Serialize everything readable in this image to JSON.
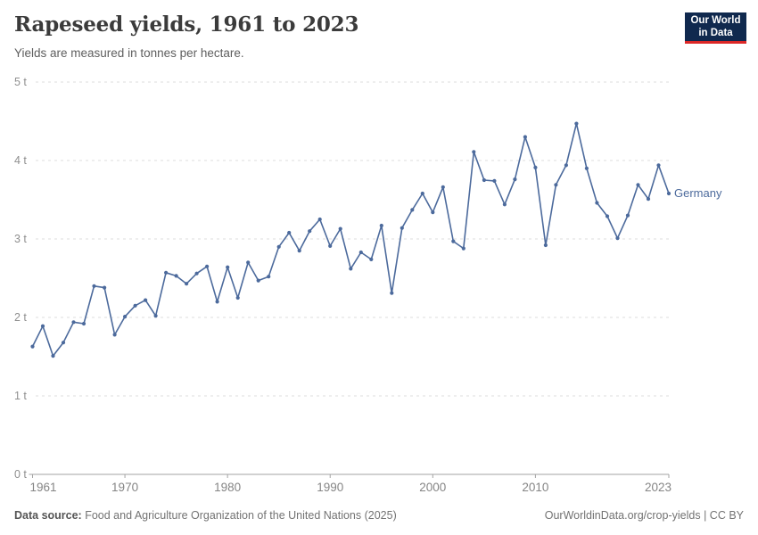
{
  "header": {
    "title": "Rapeseed yields, 1961 to 2023",
    "subtitle": "Yields are measured in tonnes per hectare.",
    "logo": {
      "line1": "Our World",
      "line2": "in Data"
    }
  },
  "chart_data": {
    "type": "line",
    "title": "Rapeseed yields, 1961 to 2023",
    "unit": "tonnes per hectare",
    "xlim": [
      1961,
      2023
    ],
    "ylim": [
      0,
      5
    ],
    "grid": "horizontal dashed",
    "legend_position": "end-of-line label, right side",
    "x_ticks": [
      {
        "v": 1961,
        "label": "1961"
      },
      {
        "v": 1970,
        "label": "1970"
      },
      {
        "v": 1980,
        "label": "1980"
      },
      {
        "v": 1990,
        "label": "1990"
      },
      {
        "v": 2000,
        "label": "2000"
      },
      {
        "v": 2010,
        "label": "2010"
      },
      {
        "v": 2023,
        "label": "2023"
      }
    ],
    "y_ticks": [
      {
        "v": 0,
        "label": "0 t"
      },
      {
        "v": 1,
        "label": "1 t"
      },
      {
        "v": 2,
        "label": "2 t"
      },
      {
        "v": 3,
        "label": "3 t"
      },
      {
        "v": 4,
        "label": "4 t"
      },
      {
        "v": 5,
        "label": "5 t"
      }
    ],
    "series": [
      {
        "name": "Germany",
        "color": "#4c6a9c",
        "x": [
          1961,
          1962,
          1963,
          1964,
          1965,
          1966,
          1967,
          1968,
          1969,
          1970,
          1971,
          1972,
          1973,
          1974,
          1975,
          1976,
          1977,
          1978,
          1979,
          1980,
          1981,
          1982,
          1983,
          1984,
          1985,
          1986,
          1987,
          1988,
          1989,
          1990,
          1991,
          1992,
          1993,
          1994,
          1995,
          1996,
          1997,
          1998,
          1999,
          2000,
          2001,
          2002,
          2003,
          2004,
          2005,
          2006,
          2007,
          2008,
          2009,
          2010,
          2011,
          2012,
          2013,
          2014,
          2015,
          2016,
          2017,
          2018,
          2019,
          2020,
          2021,
          2022,
          2023
        ],
        "y": [
          1.63,
          1.89,
          1.51,
          1.68,
          1.94,
          1.92,
          2.4,
          2.38,
          1.78,
          2.01,
          2.15,
          2.22,
          2.02,
          2.57,
          2.53,
          2.43,
          2.56,
          2.65,
          2.2,
          2.64,
          2.25,
          2.7,
          2.47,
          2.52,
          2.9,
          3.08,
          2.85,
          3.1,
          3.25,
          2.91,
          3.13,
          2.62,
          2.83,
          2.74,
          3.17,
          2.31,
          3.14,
          3.37,
          3.58,
          3.34,
          3.66,
          2.97,
          2.88,
          4.11,
          3.75,
          3.74,
          3.44,
          3.76,
          4.3,
          3.91,
          2.92,
          3.69,
          3.94,
          4.47,
          3.9,
          3.46,
          3.29,
          3.01,
          3.3,
          3.69,
          3.51,
          3.94,
          3.58
        ]
      }
    ]
  },
  "footer": {
    "datasource_label": "Data source:",
    "datasource": "Food and Agriculture Organization of the United Nations (2025)",
    "link": "OurWorldinData.org/crop-yields",
    "separator": " | ",
    "license": "CC BY"
  },
  "colors": {
    "line_color": "#4c6a9c",
    "logo_bg": "#10294e",
    "logo_stripe": "#dc2727"
  }
}
